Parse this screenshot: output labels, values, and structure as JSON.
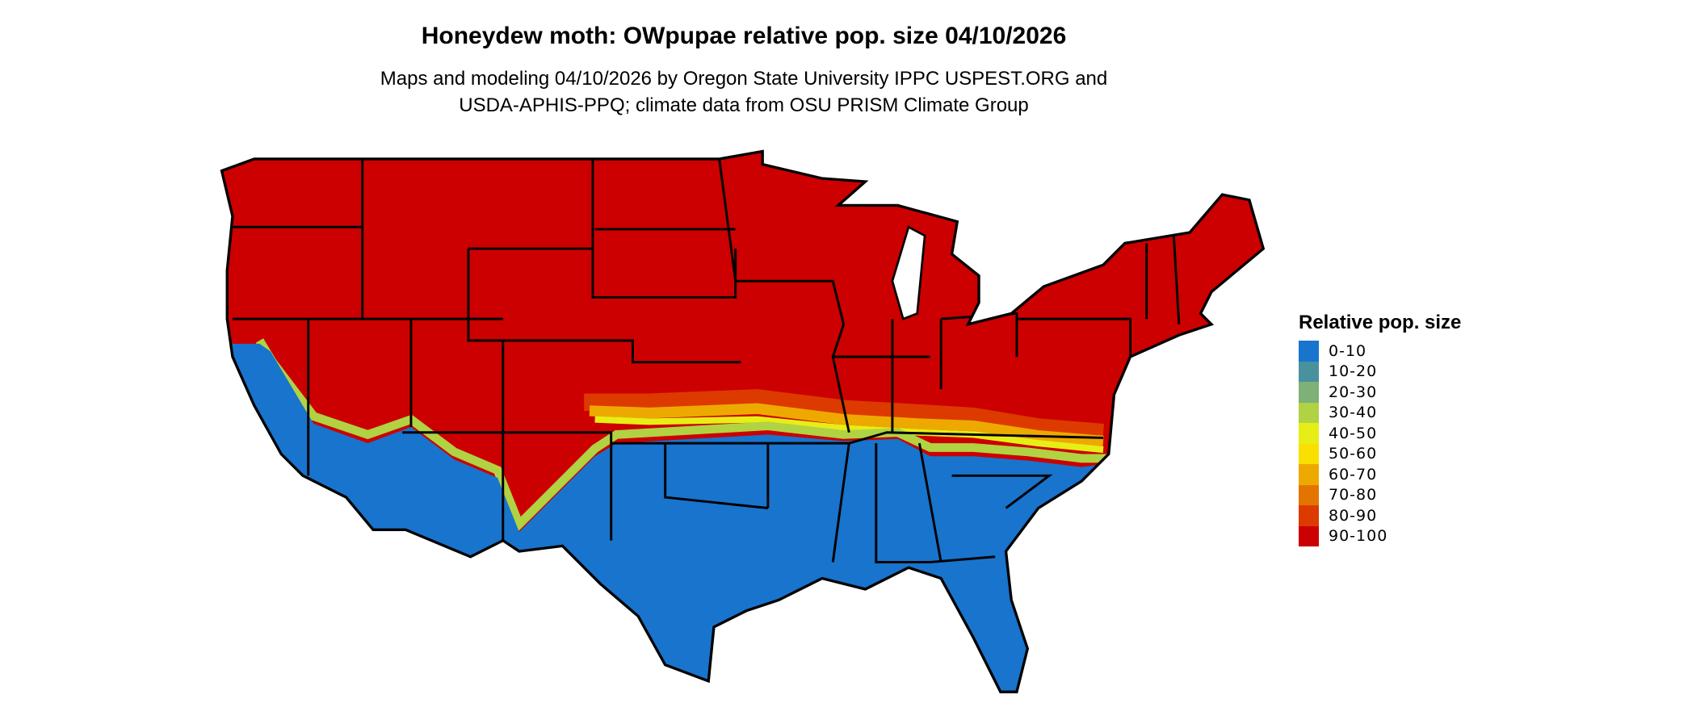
{
  "title": "Honeydew moth: OWpupae relative pop. size 04/10/2026",
  "subtitle_line1": "Maps and modeling 04/10/2026 by Oregon State University IPPC USPEST.ORG and",
  "subtitle_line2": "USDA-APHIS-PPQ; climate data from OSU PRISM Climate Group",
  "map": {
    "region": "Contiguous United States",
    "dominant_class_north": "90-100",
    "dominant_class_south": "0-10"
  },
  "legend": {
    "title": "Relative pop. size",
    "items": [
      {
        "label": "0-10",
        "color": "#1874CD"
      },
      {
        "label": "10-20",
        "color": "#4A919E"
      },
      {
        "label": "20-30",
        "color": "#7FB077"
      },
      {
        "label": "30-40",
        "color": "#B1D243"
      },
      {
        "label": "40-50",
        "color": "#E6EE16"
      },
      {
        "label": "50-60",
        "color": "#F9E000"
      },
      {
        "label": "60-70",
        "color": "#EEA900"
      },
      {
        "label": "70-80",
        "color": "#E47400"
      },
      {
        "label": "80-90",
        "color": "#DD3A00"
      },
      {
        "label": "90-100",
        "color": "#CC0000"
      }
    ]
  }
}
